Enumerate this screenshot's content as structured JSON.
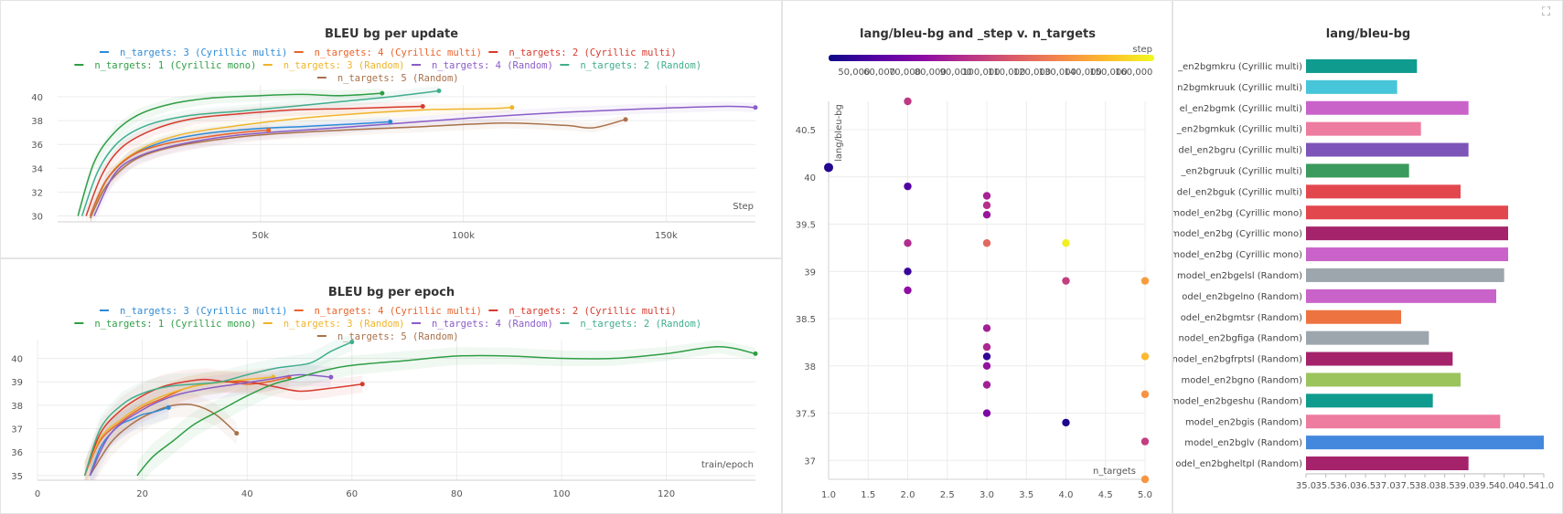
{
  "panel_update": {
    "title": "BLEU bg per update",
    "xlabel": "Step"
  },
  "panel_epoch": {
    "title": "BLEU bg per epoch",
    "xlabel": "train/epoch"
  },
  "panel_scatter": {
    "title": "lang/bleu-bg and _step v. n_targets",
    "xlabel": "n_targets",
    "ylabel": "lang/bleu-bg",
    "colorbar_label": "step"
  },
  "panel_bar": {
    "title": "lang/bleu-bg"
  },
  "legend": [
    {
      "label": "n_targets: 3 (Cyrillic multi)",
      "color": "#2e8bd6"
    },
    {
      "label": "n_targets: 4 (Cyrillic multi)",
      "color": "#e8632b"
    },
    {
      "label": "n_targets: 2 (Cyrillic multi)",
      "color": "#d63a2e"
    },
    {
      "label": "n_targets: 1 (Cyrillic mono)",
      "color": "#2e9e44"
    },
    {
      "label": "n_targets: 3 (Random)",
      "color": "#f0b429"
    },
    {
      "label": "n_targets: 4 (Random)",
      "color": "#8b5cc7"
    },
    {
      "label": "n_targets: 2 (Random)",
      "color": "#3fae8c"
    },
    {
      "label": "n_targets: 5 (Random)",
      "color": "#a8714a"
    }
  ],
  "chart_data": [
    {
      "type": "line",
      "title": "BLEU bg per update",
      "xlabel": "Step",
      "ylabel": "",
      "xlim": [
        0,
        172000
      ],
      "ylim": [
        29.5,
        41
      ],
      "xticks": [
        50000,
        100000,
        150000
      ],
      "xtick_labels": [
        "50k",
        "100k",
        "150k"
      ],
      "yticks": [
        30,
        32,
        34,
        36,
        38,
        40
      ],
      "series": [
        {
          "name": "n_targets: 5 (Random)",
          "color": "#a8714a",
          "x": [
            8000,
            12000,
            18000,
            25000,
            35000,
            50000,
            70000,
            90000,
            110000,
            125000,
            132000,
            140000
          ],
          "y": [
            29.8,
            32.5,
            34.5,
            35.5,
            36.2,
            36.8,
            37.2,
            37.5,
            37.8,
            37.6,
            37.4,
            38.1
          ]
        },
        {
          "name": "n_targets: 4 (Random)",
          "color": "#8b5cc7",
          "x": [
            9000,
            14000,
            20000,
            30000,
            45000,
            65000,
            85000,
            105000,
            125000,
            145000,
            165000,
            172000
          ],
          "y": [
            30,
            33.5,
            35,
            36,
            36.8,
            37.3,
            37.8,
            38.3,
            38.7,
            39,
            39.2,
            39.1
          ]
        },
        {
          "name": "n_targets: 3 (Random)",
          "color": "#f0b429",
          "x": [
            8000,
            13000,
            20000,
            30000,
            45000,
            60000,
            75000,
            90000,
            105000,
            112000
          ],
          "y": [
            30,
            33.5,
            35.5,
            36.8,
            37.6,
            38.2,
            38.6,
            38.9,
            39,
            39.1
          ]
        },
        {
          "name": "n_targets: 3 (Cyrillic multi)",
          "color": "#2e8bd6",
          "x": [
            8000,
            12000,
            18000,
            26000,
            36000,
            48000,
            60000,
            72000,
            82000
          ],
          "y": [
            30,
            33,
            35,
            36.2,
            36.9,
            37.3,
            37.5,
            37.7,
            37.9
          ]
        },
        {
          "name": "n_targets: 4 (Cyrillic multi)",
          "color": "#e8632b",
          "x": [
            8000,
            12000,
            18000,
            26000,
            36000,
            45000,
            52000
          ],
          "y": [
            30,
            33,
            35,
            36,
            36.6,
            37,
            37.2
          ]
        },
        {
          "name": "n_targets: 2 (Cyrillic multi)",
          "color": "#d63a2e",
          "x": [
            7000,
            11000,
            16000,
            24000,
            34000,
            46000,
            58000,
            70000,
            80000,
            90000
          ],
          "y": [
            30,
            33.5,
            35.8,
            37.3,
            38.2,
            38.6,
            38.9,
            39,
            39.1,
            39.2
          ]
        },
        {
          "name": "n_targets: 2 (Random)",
          "color": "#3fae8c",
          "x": [
            6000,
            10000,
            15000,
            22000,
            32000,
            45000,
            58000,
            70000,
            82000,
            94000
          ],
          "y": [
            30,
            33.8,
            36.2,
            37.6,
            38.4,
            38.8,
            39.2,
            39.6,
            40,
            40.5
          ]
        },
        {
          "name": "n_targets: 1 (Cyrillic mono)",
          "color": "#2e9e44",
          "x": [
            5000,
            9000,
            14000,
            20000,
            28000,
            38000,
            50000,
            60000,
            70000,
            80000
          ],
          "y": [
            30,
            34.5,
            37,
            38.5,
            39.4,
            39.9,
            40.1,
            40.2,
            40.1,
            40.3
          ]
        }
      ]
    },
    {
      "type": "line",
      "title": "BLEU bg per epoch",
      "xlabel": "train/epoch",
      "ylabel": "",
      "xlim": [
        0,
        137
      ],
      "ylim": [
        34.8,
        40.8
      ],
      "xticks": [
        0,
        20,
        40,
        60,
        80,
        100,
        120
      ],
      "yticks": [
        35,
        36,
        37,
        38,
        39,
        40
      ],
      "series": [
        {
          "name": "n_targets: 5 (Random)",
          "color": "#a8714a",
          "x": [
            10,
            14,
            18,
            22,
            26,
            30,
            34,
            38
          ],
          "y": [
            35,
            36.4,
            37.2,
            37.7,
            38,
            38,
            37.6,
            36.8
          ]
        },
        {
          "name": "n_targets: 3 (Cyrillic multi)",
          "color": "#2e8bd6",
          "x": [
            10,
            12,
            14,
            16,
            18,
            20,
            22,
            25
          ],
          "y": [
            35,
            36.2,
            36.8,
            37.2,
            37.4,
            37.6,
            37.7,
            37.9
          ]
        },
        {
          "name": "n_targets: 4 (Cyrillic multi)",
          "color": "#e8632b",
          "x": [
            9,
            12,
            16,
            20,
            24,
            28,
            32,
            36,
            40,
            44,
            48
          ],
          "y": [
            35,
            36.5,
            37.3,
            37.9,
            38.3,
            38.7,
            38.9,
            39,
            38.9,
            39,
            39.2
          ]
        },
        {
          "name": "n_targets: 3 (Random)",
          "color": "#f0b429",
          "x": [
            9,
            12,
            16,
            20,
            24,
            28,
            32,
            36,
            40,
            45
          ],
          "y": [
            35,
            36.6,
            37.4,
            38,
            38.4,
            38.7,
            38.9,
            39,
            39.1,
            39.2
          ]
        },
        {
          "name": "n_targets: 2 (Cyrillic multi)",
          "color": "#d63a2e",
          "x": [
            9,
            12,
            16,
            20,
            24,
            28,
            32,
            36,
            40,
            45,
            50,
            55,
            62
          ],
          "y": [
            35,
            36.8,
            37.8,
            38.4,
            38.8,
            39,
            39.1,
            39,
            39,
            38.8,
            38.6,
            38.7,
            38.9
          ]
        },
        {
          "name": "n_targets: 4 (Random)",
          "color": "#8b5cc7",
          "x": [
            10,
            14,
            20,
            26,
            32,
            38,
            44,
            50,
            56
          ],
          "y": [
            35,
            36.8,
            37.8,
            38.4,
            38.7,
            38.9,
            39.1,
            39.3,
            39.2
          ]
        },
        {
          "name": "n_targets: 2 (Random)",
          "color": "#3fae8c",
          "x": [
            9,
            12,
            16,
            20,
            25,
            30,
            35,
            40,
            46,
            52,
            56,
            60
          ],
          "y": [
            35,
            37,
            38,
            38.5,
            38.8,
            38.9,
            39,
            39.3,
            39.6,
            39.8,
            40.3,
            40.7
          ]
        },
        {
          "name": "n_targets: 1 (Cyrillic mono)",
          "color": "#2e9e44",
          "x": [
            19,
            22,
            26,
            30,
            35,
            40,
            45,
            50,
            55,
            60,
            70,
            80,
            90,
            100,
            110,
            120,
            130,
            137
          ],
          "y": [
            35,
            35.8,
            36.5,
            37.2,
            37.8,
            38.4,
            38.9,
            39.2,
            39.5,
            39.7,
            39.9,
            40.1,
            40.1,
            40,
            40,
            40.2,
            40.5,
            40.2
          ]
        }
      ]
    },
    {
      "type": "scatter",
      "title": "lang/bleu-bg and _step v. n_targets",
      "xlabel": "n_targets",
      "ylabel": "lang/bleu-bg",
      "xlim": [
        1,
        5
      ],
      "ylim": [
        36.8,
        40.8
      ],
      "xticks": [
        1.0,
        1.5,
        2.0,
        2.5,
        3.0,
        3.5,
        4.0,
        4.5,
        5.0
      ],
      "yticks": [
        37,
        37.5,
        38,
        38.5,
        39,
        39.5,
        40,
        40.5
      ],
      "colorbar": {
        "label": "step",
        "min": 40000,
        "max": 168000,
        "ticks": [
          50000,
          60000,
          70000,
          80000,
          90000,
          100000,
          110000,
          120000,
          130000,
          140000,
          150000,
          160000
        ],
        "tick_labels": [
          "50,000",
          "60,000",
          "70,000",
          "80,000",
          "90,000",
          "100,000",
          "110,000",
          "120,000",
          "130,000",
          "140,000",
          "150,000",
          "160,000"
        ]
      },
      "points": [
        {
          "x": 1,
          "y": 40.1,
          "step": 46000,
          "big": true
        },
        {
          "x": 2,
          "y": 40.8,
          "step": 98000
        },
        {
          "x": 2,
          "y": 39.9,
          "step": 58000
        },
        {
          "x": 2,
          "y": 39.3,
          "step": 92000
        },
        {
          "x": 2,
          "y": 39.0,
          "step": 52000
        },
        {
          "x": 2,
          "y": 38.8,
          "step": 78000
        },
        {
          "x": 3,
          "y": 39.8,
          "step": 88000
        },
        {
          "x": 3,
          "y": 39.7,
          "step": 94000
        },
        {
          "x": 3,
          "y": 39.6,
          "step": 82000
        },
        {
          "x": 3,
          "y": 39.3,
          "step": 118000
        },
        {
          "x": 3,
          "y": 38.4,
          "step": 86000
        },
        {
          "x": 3,
          "y": 38.2,
          "step": 90000
        },
        {
          "x": 3,
          "y": 38.1,
          "step": 50000
        },
        {
          "x": 3,
          "y": 38.0,
          "step": 80000
        },
        {
          "x": 3,
          "y": 37.8,
          "step": 86000
        },
        {
          "x": 3,
          "y": 37.5,
          "step": 72000
        },
        {
          "x": 4,
          "y": 39.3,
          "step": 165000
        },
        {
          "x": 4,
          "y": 38.9,
          "step": 100000
        },
        {
          "x": 4,
          "y": 37.4,
          "step": 44000
        },
        {
          "x": 5,
          "y": 38.9,
          "step": 138000
        },
        {
          "x": 5,
          "y": 38.1,
          "step": 148000
        },
        {
          "x": 5,
          "y": 37.7,
          "step": 135000
        },
        {
          "x": 5,
          "y": 37.2,
          "step": 100000
        },
        {
          "x": 5,
          "y": 36.8,
          "step": 136000
        }
      ]
    },
    {
      "type": "bar",
      "orientation": "horizontal",
      "title": "lang/bleu-bg",
      "xlim": [
        35.0,
        41.0
      ],
      "xticks": [
        35.0,
        35.5,
        36.0,
        36.5,
        37.0,
        37.5,
        38.0,
        38.5,
        39.0,
        39.5,
        40.0,
        40.5,
        41.0
      ],
      "xtick_labels": [
        "35.0",
        "35.5",
        "36.0",
        "36.5",
        "37.0",
        "37.5",
        "38.0",
        "38.5",
        "39.0",
        "39.5",
        "40.0",
        "40.5",
        "41.0"
      ],
      "categories": [
        "_en2bgmkru (Cyrillic multi)",
        "n2bgmkruuk (Cyrillic multi)",
        "el_en2bgmk (Cyrillic multi)",
        "_en2bgmkuk (Cyrillic multi)",
        "del_en2bgru (Cyrillic multi)",
        "_en2bgruuk (Cyrillic multi)",
        "del_en2bguk (Cyrillic multi)",
        "model_en2bg (Cyrillic mono)",
        "model_en2bg (Cyrillic mono)",
        "model_en2bg (Cyrillic mono)",
        "model_en2bgelsl (Random)",
        "odel_en2bgelno (Random)",
        "odel_en2bgmtsr (Random)",
        "nodel_en2bgfiga (Random)",
        "nodel_en2bgfrptsl (Random)",
        "model_en2bgno (Random)",
        "model_en2bgeshu (Random)",
        "model_en2bgis (Random)",
        "model_en2bglv (Random)",
        "odel_en2bgheltpl (Random)"
      ],
      "values": [
        37.8,
        37.3,
        39.1,
        37.9,
        39.1,
        37.6,
        38.9,
        40.1,
        40.1,
        40.1,
        40.0,
        39.8,
        37.4,
        38.1,
        38.7,
        38.9,
        38.2,
        39.9,
        41.0,
        39.1
      ],
      "colors": [
        "#0f9b8e",
        "#48c6d9",
        "#c963c9",
        "#ee7ba0",
        "#7d55b8",
        "#3b9a5d",
        "#e2474d",
        "#e2474d",
        "#a4236a",
        "#c963c9",
        "#9ea6ad",
        "#c963c9",
        "#ed7340",
        "#9ea6ad",
        "#a4236a",
        "#9bc45c",
        "#0f9b8e",
        "#ee7ba0",
        "#4488dd",
        "#a4236a"
      ]
    }
  ]
}
